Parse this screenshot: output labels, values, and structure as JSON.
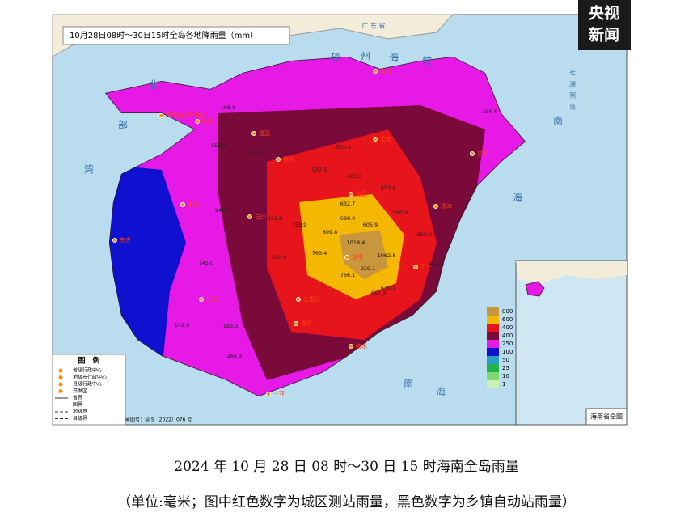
{
  "logo": {
    "line1": "央视",
    "line2": "新闻"
  },
  "map": {
    "title": "10月28日08时～30日15时全岛各地降雨量（mm）",
    "sea_labels": [
      "北",
      "部",
      "湾",
      "琼",
      "州",
      "海",
      "峡",
      "南",
      "海",
      "南",
      "海",
      "广 东 省",
      "七",
      "洲",
      "列",
      "岛"
    ],
    "cities": [
      "海口",
      "儋州",
      "澄迈",
      "临高",
      "定安",
      "文昌",
      "琼海",
      "屯昌",
      "万宁",
      "琼中",
      "白沙",
      "昌江",
      "东方",
      "五指山",
      "乐东",
      "保亭",
      "陵水",
      "三亚",
      "洋浦经济开发区"
    ],
    "stations": [
      "1018.4",
      "1062.8",
      "929.1",
      "766.1",
      "763.4",
      "809.8",
      "753.9",
      "698.0",
      "605.9",
      "632.7",
      "537.5",
      "510.3",
      "401.7",
      "451.6",
      "453.4",
      "560.9",
      "582.9",
      "592.0",
      "667.3",
      "630.1",
      "385.0",
      "249.5",
      "159.8",
      "145.0",
      "198.8",
      "216.8",
      "142.9",
      "183.3",
      "264.3",
      "154.4"
    ],
    "approval": "审图号：琼 S（2022）076 号"
  },
  "legend": {
    "title": "图　例",
    "items": [
      "省级行政中心",
      "地级市行政中心",
      "县级行政中心",
      "开发区",
      "省界",
      "国界",
      "地级界",
      "县级界"
    ]
  },
  "scale": [
    {
      "label": 800,
      "color": "#c8963c"
    },
    {
      "label": 600,
      "color": "#f5b800"
    },
    {
      "label": 400,
      "color": "#e8141c"
    },
    {
      "label": 400,
      "color": "#7a0a3a"
    },
    {
      "label": 250,
      "color": "#e619e6"
    },
    {
      "label": 100,
      "color": "#1010d0"
    },
    {
      "label": 50,
      "color": "#2aa0c8"
    },
    {
      "label": 25,
      "color": "#22b44a"
    },
    {
      "label": 10,
      "color": "#7ed870"
    },
    {
      "label": 1,
      "color": "#c8f0b8"
    }
  ],
  "inset": {
    "title": "海南省全图"
  },
  "caption": {
    "title": "2024 年 10 月 28 日 08 时～30 日 15 时海南全岛雨量",
    "note": "（单位:毫米；图中红色数字为城区测站雨量，黑色数字为乡镇自动站雨量）"
  }
}
